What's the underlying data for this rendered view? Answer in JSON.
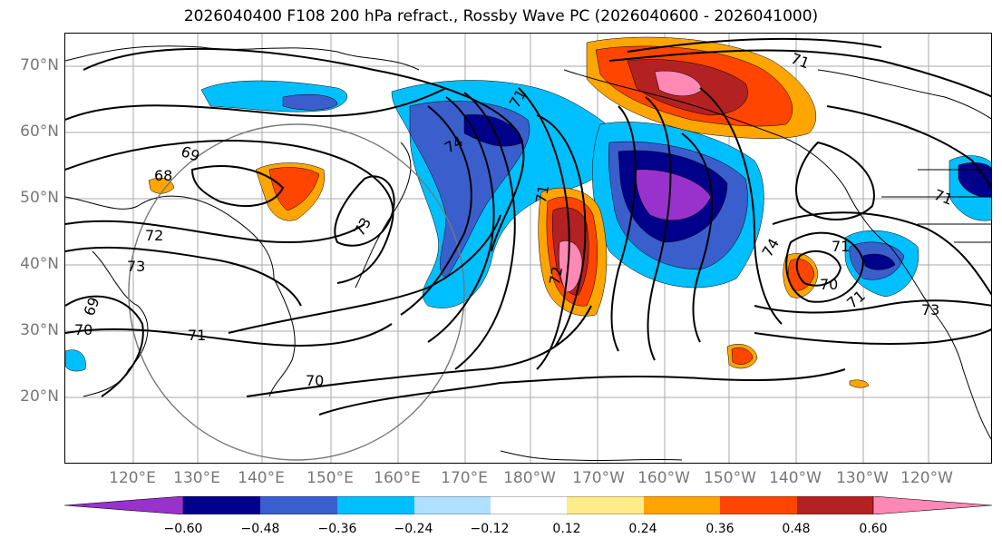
{
  "title": "2026040400 F108 200 hPa refract., Rossby Wave PC (2026040600 - 2026041000)",
  "lat_labels": [
    "70°N",
    "60°N",
    "50°N",
    "40°N",
    "30°N",
    "20°N"
  ],
  "lon_labels": [
    "120°E",
    "130°E",
    "140°E",
    "150°E",
    "160°E",
    "170°E",
    "180°W",
    "170°W",
    "160°W",
    "150°W",
    "140°W",
    "130°W",
    "120°W"
  ],
  "contour_labels": [
    "69",
    "68",
    "72",
    "73",
    "69",
    "70",
    "71",
    "70",
    "74",
    "73",
    "71",
    "71",
    "72",
    "74",
    "71",
    "70",
    "71",
    "73",
    "71",
    "71"
  ],
  "colorbar": {
    "ticks": [
      "−0.60",
      "−0.48",
      "−0.36",
      "−0.24",
      "−0.12",
      "0.12",
      "0.24",
      "0.36",
      "0.48",
      "0.60"
    ],
    "colors": [
      "#9932cc",
      "#00008b",
      "#3a5fcd",
      "#00bfff",
      "#b0e0ff",
      "#ffffff",
      "#ffeb8a",
      "#ffa500",
      "#ff4500",
      "#b22222",
      "#ff88b4"
    ]
  }
}
